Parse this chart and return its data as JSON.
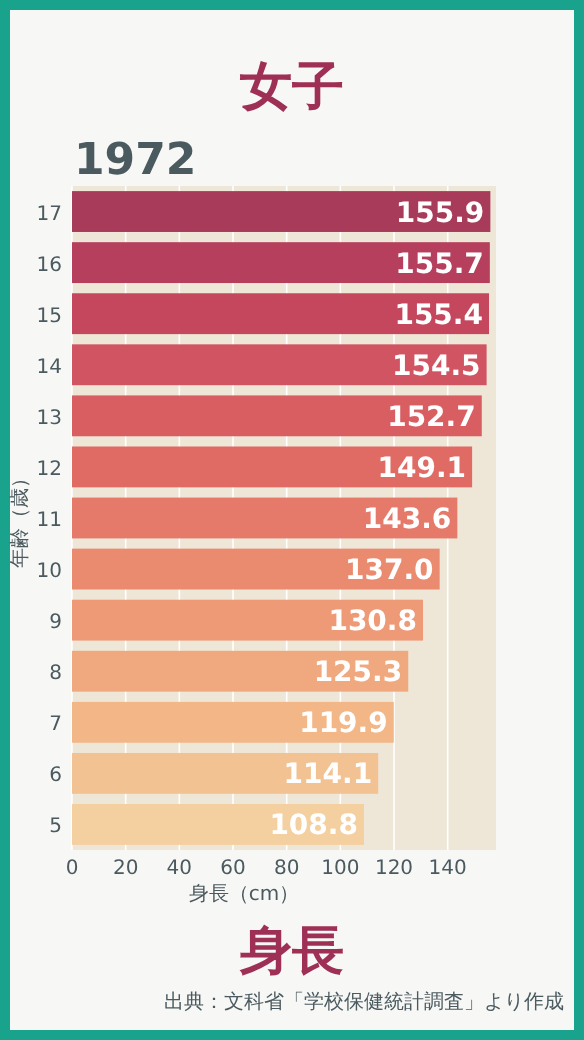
{
  "chart_data": {
    "type": "bar",
    "orientation": "horizontal",
    "title": "女子",
    "subtitle": "1972",
    "xlabel": "身長（cm）",
    "ylabel": "年齢（歳）",
    "annotations": [
      "身長",
      "出典：文科省「学校保健統計調査」より作成"
    ],
    "categories": [
      "17",
      "16",
      "15",
      "14",
      "13",
      "12",
      "11",
      "10",
      "9",
      "8",
      "7",
      "6",
      "5"
    ],
    "values": [
      155.9,
      155.7,
      155.4,
      154.5,
      152.7,
      149.1,
      143.6,
      137.0,
      130.8,
      125.3,
      119.9,
      114.1,
      108.8
    ],
    "colors": [
      "#a83a5a",
      "#b53f5c",
      "#c4475e",
      "#d05462",
      "#d95e62",
      "#e06b65",
      "#e5796a",
      "#ea8a6f",
      "#ee9a77",
      "#f0a87e",
      "#f2b687",
      "#f3c293",
      "#f4cf9f"
    ],
    "value_labels": [
      "155.9",
      "155.7",
      "155.4",
      "154.5",
      "152.7",
      "149.1",
      "143.6",
      "137.0",
      "130.8",
      "125.3",
      "119.9",
      "114.1",
      "108.8"
    ],
    "xlim": [
      0,
      158
    ],
    "xticks": [
      0,
      20,
      40,
      60,
      80,
      100,
      120,
      140
    ],
    "grid": "x"
  }
}
